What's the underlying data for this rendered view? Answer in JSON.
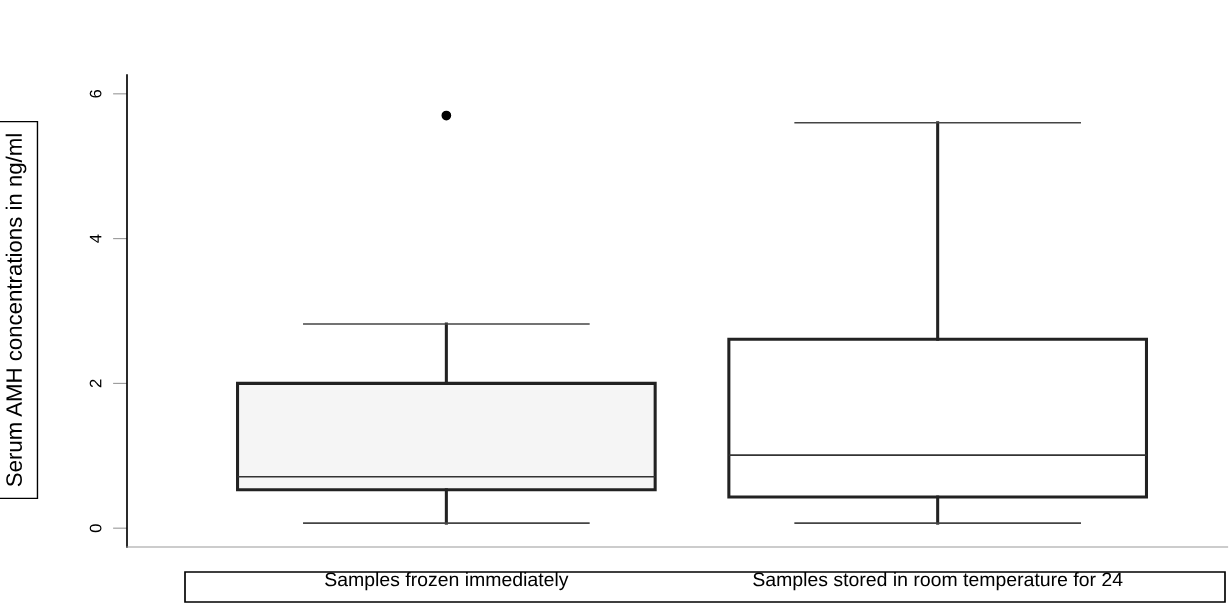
{
  "chart_data": {
    "type": "box",
    "ylabel": "Serum AMH concentrations in ng/ml",
    "categories": [
      "Samples frozen immediately",
      "Samples stored in room temperature for 24"
    ],
    "boxes": [
      {
        "low": 0.07,
        "q1": 0.53,
        "median": 0.71,
        "q3": 2.0,
        "high": 2.82,
        "outliers": [
          5.7
        ]
      },
      {
        "low": 0.07,
        "q1": 0.43,
        "median": 1.01,
        "q3": 2.61,
        "high": 5.6
      }
    ],
    "colors": [
      "#f5f5f5",
      "#ffffff"
    ],
    "ylim": [
      -0.26,
      6.26
    ],
    "yticks": [
      0,
      2,
      4,
      6
    ],
    "grid": false,
    "legend": false
  }
}
